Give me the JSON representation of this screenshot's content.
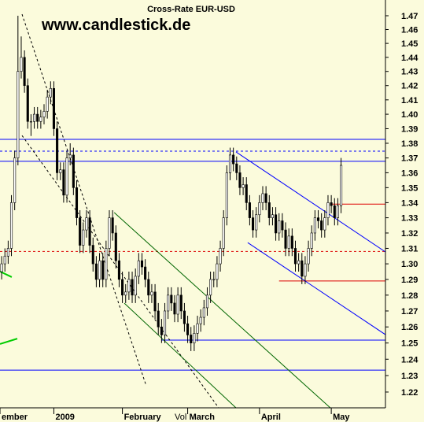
{
  "chart_data": {
    "type": "candlestick",
    "title": "Cross-Rate  EUR-USD",
    "watermark": "www.candlestick.de",
    "volume_label": "Vol",
    "log_scale": true,
    "background": "#fbfbdc",
    "up_color": "#ffffff",
    "down_color": "#000000",
    "ylim": [
      1.2105,
      1.4815
    ],
    "yticks": [
      1.22,
      1.23,
      1.24,
      1.25,
      1.26,
      1.27,
      1.28,
      1.29,
      {
        "value": 1.3,
        "label": "1.30"
      },
      1.31,
      1.32,
      1.33,
      1.34,
      1.35,
      1.36,
      1.37,
      1.38,
      1.39,
      {
        "value": 1.4,
        "label": "1.40"
      },
      1.41,
      1.42,
      1.43,
      1.44,
      1.45,
      1.46,
      1.47
    ],
    "xlim": [
      -0.5,
      117.6
    ],
    "xticks": [
      {
        "value": -0.5,
        "label": "ember"
      },
      {
        "value": 16,
        "label": "2009"
      },
      {
        "value": 37,
        "label": "February"
      },
      {
        "value": 57,
        "label": "March"
      },
      {
        "value": 79,
        "label": "April"
      },
      {
        "value": 101,
        "label": "May"
      }
    ],
    "ohlc": [
      [
        1.295,
        1.305,
        1.29,
        1.3
      ],
      [
        1.3,
        1.31,
        1.295,
        1.305
      ],
      [
        1.305,
        1.315,
        1.3,
        1.31
      ],
      [
        1.31,
        1.345,
        1.305,
        1.34
      ],
      [
        1.34,
        1.375,
        1.335,
        1.37
      ],
      [
        1.37,
        1.47,
        1.365,
        1.43
      ],
      [
        1.43,
        1.455,
        1.425,
        1.44
      ],
      [
        1.44,
        1.445,
        1.415,
        1.42
      ],
      [
        1.42,
        1.425,
        1.39,
        1.395
      ],
      [
        1.395,
        1.4,
        1.385,
        1.395
      ],
      [
        1.395,
        1.405,
        1.39,
        1.4
      ],
      [
        1.4,
        1.405,
        1.39,
        1.395
      ],
      [
        1.395,
        1.403,
        1.39,
        1.398
      ],
      [
        1.398,
        1.407,
        1.393,
        1.402
      ],
      [
        1.402,
        1.417,
        1.397,
        1.412
      ],
      [
        1.412,
        1.423,
        1.407,
        1.418
      ],
      [
        1.418,
        1.423,
        1.385,
        1.39
      ],
      [
        1.39,
        1.395,
        1.355,
        1.36
      ],
      [
        1.36,
        1.367,
        1.355,
        1.362
      ],
      [
        1.362,
        1.367,
        1.34,
        1.345
      ],
      [
        1.345,
        1.375,
        1.34,
        1.37
      ],
      [
        1.37,
        1.38,
        1.365,
        1.372
      ],
      [
        1.372,
        1.377,
        1.345,
        1.35
      ],
      [
        1.35,
        1.355,
        1.325,
        1.33
      ],
      [
        1.33,
        1.335,
        1.307,
        1.312
      ],
      [
        1.312,
        1.327,
        1.307,
        1.322
      ],
      [
        1.322,
        1.335,
        1.317,
        1.33
      ],
      [
        1.33,
        1.335,
        1.307,
        1.312
      ],
      [
        1.312,
        1.317,
        1.295,
        1.3
      ],
      [
        1.3,
        1.305,
        1.285,
        1.29
      ],
      [
        1.29,
        1.307,
        1.285,
        1.302
      ],
      [
        1.302,
        1.307,
        1.285,
        1.29
      ],
      [
        1.29,
        1.315,
        1.285,
        1.31
      ],
      [
        1.31,
        1.335,
        1.305,
        1.33
      ],
      [
        1.33,
        1.335,
        1.315,
        1.32
      ],
      [
        1.32,
        1.325,
        1.297,
        1.302
      ],
      [
        1.302,
        1.307,
        1.285,
        1.29
      ],
      [
        1.29,
        1.295,
        1.275,
        1.28
      ],
      [
        1.28,
        1.287,
        1.275,
        1.282
      ],
      [
        1.282,
        1.295,
        1.277,
        1.29
      ],
      [
        1.29,
        1.295,
        1.275,
        1.28
      ],
      [
        1.28,
        1.297,
        1.275,
        1.292
      ],
      [
        1.292,
        1.307,
        1.287,
        1.302
      ],
      [
        1.302,
        1.307,
        1.293,
        1.298
      ],
      [
        1.298,
        1.303,
        1.285,
        1.29
      ],
      [
        1.29,
        1.295,
        1.275,
        1.28
      ],
      [
        1.28,
        1.287,
        1.275,
        1.282
      ],
      [
        1.282,
        1.287,
        1.265,
        1.27
      ],
      [
        1.27,
        1.275,
        1.255,
        1.26
      ],
      [
        1.26,
        1.265,
        1.25,
        1.255
      ],
      [
        1.255,
        1.275,
        1.25,
        1.27
      ],
      [
        1.27,
        1.285,
        1.265,
        1.28
      ],
      [
        1.28,
        1.285,
        1.27,
        1.275
      ],
      [
        1.275,
        1.28,
        1.263,
        1.268
      ],
      [
        1.268,
        1.285,
        1.263,
        1.28
      ],
      [
        1.28,
        1.285,
        1.265,
        1.27
      ],
      [
        1.27,
        1.275,
        1.257,
        1.262
      ],
      [
        1.262,
        1.267,
        1.25,
        1.255
      ],
      [
        1.255,
        1.26,
        1.245,
        1.25
      ],
      [
        1.25,
        1.261,
        1.245,
        1.256
      ],
      [
        1.256,
        1.267,
        1.251,
        1.262
      ],
      [
        1.262,
        1.271,
        1.257,
        1.266
      ],
      [
        1.266,
        1.277,
        1.261,
        1.272
      ],
      [
        1.272,
        1.285,
        1.267,
        1.28
      ],
      [
        1.28,
        1.295,
        1.275,
        1.29
      ],
      [
        1.29,
        1.295,
        1.285,
        1.29
      ],
      [
        1.29,
        1.305,
        1.285,
        1.3
      ],
      [
        1.3,
        1.315,
        1.295,
        1.31
      ],
      [
        1.31,
        1.335,
        1.305,
        1.33
      ],
      [
        1.33,
        1.365,
        1.325,
        1.36
      ],
      [
        1.36,
        1.377,
        1.355,
        1.372
      ],
      [
        1.372,
        1.377,
        1.361,
        1.366
      ],
      [
        1.366,
        1.371,
        1.355,
        1.36
      ],
      [
        1.36,
        1.365,
        1.345,
        1.35
      ],
      [
        1.35,
        1.357,
        1.345,
        1.352
      ],
      [
        1.352,
        1.357,
        1.335,
        1.34
      ],
      [
        1.34,
        1.345,
        1.325,
        1.33
      ],
      [
        1.33,
        1.335,
        1.317,
        1.322
      ],
      [
        1.322,
        1.337,
        1.317,
        1.332
      ],
      [
        1.332,
        1.345,
        1.327,
        1.34
      ],
      [
        1.34,
        1.351,
        1.335,
        1.346
      ],
      [
        1.346,
        1.351,
        1.335,
        1.34
      ],
      [
        1.34,
        1.345,
        1.325,
        1.33
      ],
      [
        1.33,
        1.337,
        1.325,
        1.332
      ],
      [
        1.332,
        1.337,
        1.315,
        1.32
      ],
      [
        1.32,
        1.333,
        1.315,
        1.328
      ],
      [
        1.328,
        1.333,
        1.317,
        1.322
      ],
      [
        1.322,
        1.327,
        1.305,
        1.31
      ],
      [
        1.31,
        1.323,
        1.305,
        1.318
      ],
      [
        1.318,
        1.323,
        1.305,
        1.31
      ],
      [
        1.31,
        1.315,
        1.295,
        1.3
      ],
      [
        1.3,
        1.307,
        1.295,
        1.302
      ],
      [
        1.302,
        1.307,
        1.287,
        1.292
      ],
      [
        1.292,
        1.305,
        1.287,
        1.3
      ],
      [
        1.3,
        1.315,
        1.295,
        1.31
      ],
      [
        1.31,
        1.325,
        1.305,
        1.32
      ],
      [
        1.32,
        1.335,
        1.315,
        1.33
      ],
      [
        1.33,
        1.335,
        1.323,
        1.328
      ],
      [
        1.328,
        1.333,
        1.317,
        1.322
      ],
      [
        1.322,
        1.335,
        1.317,
        1.33
      ],
      [
        1.33,
        1.345,
        1.325,
        1.34
      ],
      [
        1.34,
        1.345,
        1.333,
        1.338
      ],
      [
        1.338,
        1.343,
        1.325,
        1.33
      ],
      [
        1.33,
        1.343,
        1.325,
        1.338
      ],
      [
        1.338,
        1.37,
        1.333,
        1.365
      ]
    ],
    "lines": [
      {
        "color": "#0000ff",
        "dash": false,
        "x": [
          -0.5,
          117.6
        ],
        "y": [
          1.3827,
          1.3827
        ]
      },
      {
        "color": "#0000ff",
        "dash": true,
        "x": [
          -0.5,
          117.6
        ],
        "y": [
          1.3746,
          1.3746
        ]
      },
      {
        "color": "#0000ff",
        "dash": false,
        "x": [
          -0.5,
          117.6
        ],
        "y": [
          1.3677,
          1.3677
        ]
      },
      {
        "color": "#dd0000",
        "dash": false,
        "x": [
          101,
          117.6
        ],
        "y": [
          1.339,
          1.339
        ]
      },
      {
        "color": "#dd0000",
        "dash": true,
        "x": [
          -0.5,
          117.6
        ],
        "y": [
          1.308,
          1.308
        ]
      },
      {
        "color": "#dd0000",
        "dash": false,
        "x": [
          85,
          117.6
        ],
        "y": [
          1.289,
          1.289
        ]
      },
      {
        "color": "#0000ff",
        "dash": false,
        "x": [
          48.9,
          117.6
        ],
        "y": [
          1.2518,
          1.2518
        ]
      },
      {
        "color": "#0000ff",
        "dash": false,
        "x": [
          -0.5,
          117.6
        ],
        "y": [
          1.2333,
          1.2333
        ]
      },
      {
        "color": "#000000",
        "dash": true,
        "x": [
          6.25,
          44.3
        ],
        "y": [
          1.4711,
          1.2238
        ]
      },
      {
        "color": "#000000",
        "dash": true,
        "x": [
          6.25,
          66.5
        ],
        "y": [
          1.3853,
          1.2105
        ]
      },
      {
        "color": "#006600",
        "dash": false,
        "x": [
          34.5,
          100.7
        ],
        "y": [
          1.3334,
          1.2105
        ]
      },
      {
        "color": "#006600",
        "dash": false,
        "x": [
          37.6,
          71.8
        ],
        "y": [
          1.2749,
          1.2105
        ]
      },
      {
        "color": "#0000ff",
        "dash": false,
        "x": [
          71.8,
          117.6
        ],
        "y": [
          1.3741,
          1.3077
        ]
      },
      {
        "color": "#0000ff",
        "dash": false,
        "x": [
          75.4,
          117.6
        ],
        "y": [
          1.3137,
          1.2552
        ]
      },
      {
        "color": "#00cc00",
        "dash": false,
        "x": [
          -0.5,
          3.1
        ],
        "y": [
          1.2951,
          1.2915
        ]
      },
      {
        "color": "#00cc00",
        "dash": false,
        "x": [
          -0.5,
          4.8
        ],
        "y": [
          1.2494,
          1.2527
        ]
      }
    ]
  }
}
